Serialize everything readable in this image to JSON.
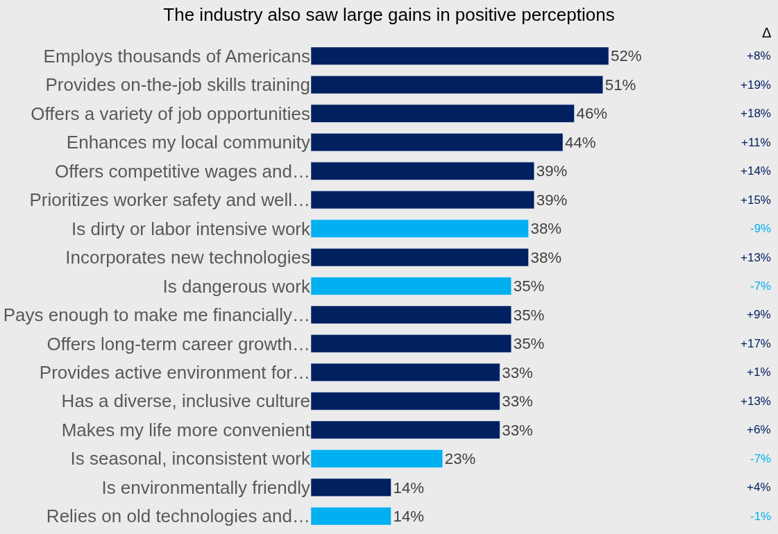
{
  "chart_data": {
    "type": "bar",
    "orientation": "horizontal",
    "title": "The industry also saw large gains in positive perceptions",
    "categories": [
      "Employs thousands of Americans",
      "Provides on-the-job skills training",
      "Offers a variety of job opportunities",
      "Enhances my local community",
      "Offers competitive wages and…",
      "Prioritizes worker safety and well…",
      "Is dirty or labor intensive work",
      "Incorporates new technologies",
      "Is dangerous work",
      "Pays enough to make me financially…",
      "Offers long-term career growth…",
      "Provides active environment for…",
      "Has a diverse, inclusive culture",
      "Makes my life more convenient",
      "Is seasonal, inconsistent work",
      "Is environmentally friendly",
      "Relies on old technologies and…"
    ],
    "values": [
      52,
      51,
      46,
      44,
      39,
      39,
      38,
      38,
      35,
      35,
      35,
      33,
      33,
      33,
      23,
      14,
      14
    ],
    "value_labels": [
      "52%",
      "51%",
      "46%",
      "44%",
      "39%",
      "39%",
      "38%",
      "38%",
      "35%",
      "35%",
      "35%",
      "33%",
      "33%",
      "33%",
      "23%",
      "14%",
      "14%"
    ],
    "colors": [
      "#002060",
      "#002060",
      "#002060",
      "#002060",
      "#002060",
      "#002060",
      "#00b0f0",
      "#002060",
      "#00b0f0",
      "#002060",
      "#002060",
      "#002060",
      "#002060",
      "#002060",
      "#00b0f0",
      "#002060",
      "#00b0f0"
    ],
    "annotations": [
      "Δ",
      "+8%",
      "+19%",
      "+18%",
      "+11%",
      "+14%",
      "+15%",
      "-9%",
      "+13%",
      "-7%",
      "+9%",
      "+17%",
      "+1%",
      "+13%",
      "+6%",
      "-7%",
      "+4%",
      "-1%"
    ],
    "legend": false
  }
}
